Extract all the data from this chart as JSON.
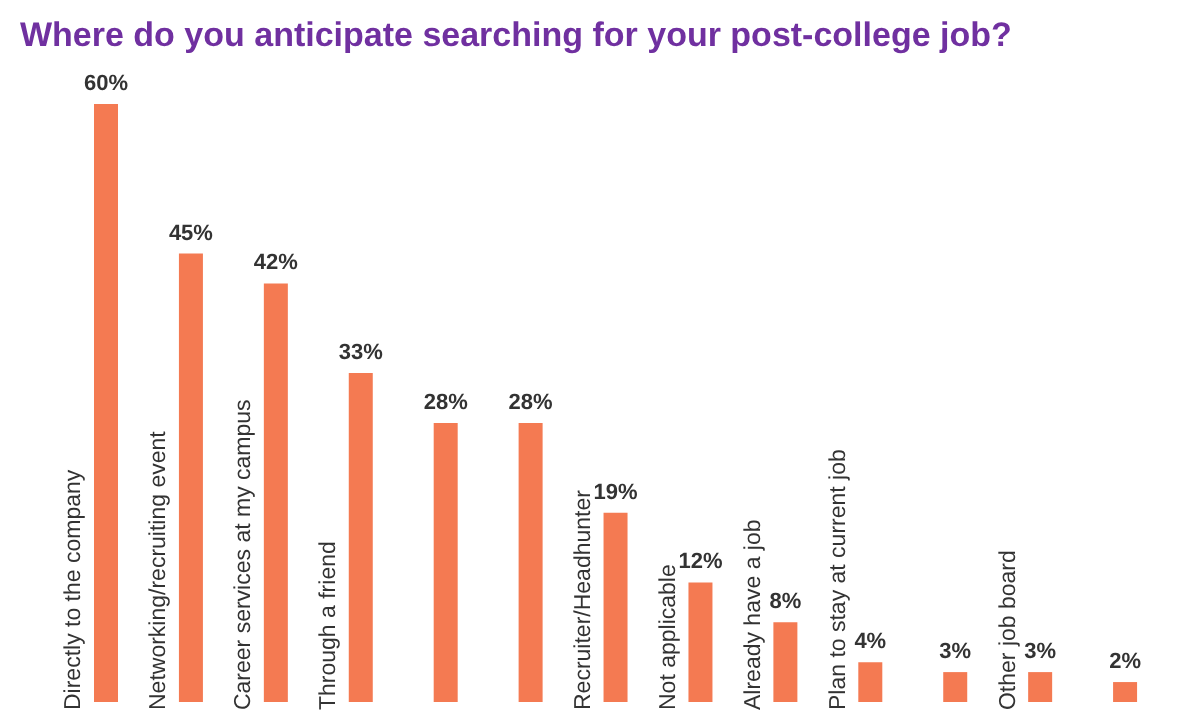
{
  "chart_data": {
    "type": "bar",
    "title": "Where do you anticipate searching for your post-college job?",
    "categories": [
      "Directly to the company",
      "Networking/recruiting event",
      "Career services at my campus",
      "Through a friend",
      null,
      null,
      "Recruiter/Headhunter",
      "Not applicable",
      "Already have a job",
      "Plan to stay at current job",
      null,
      "Other job board",
      null
    ],
    "values": [
      60,
      45,
      42,
      33,
      28,
      28,
      19,
      12,
      8,
      4,
      3,
      3,
      2
    ],
    "value_labels": [
      "60%",
      "45%",
      "42%",
      "33%",
      "28%",
      "28%",
      "19%",
      "12%",
      "8%",
      "4%",
      "3%",
      "3%",
      "2%"
    ],
    "color": "#f47a52",
    "tick_labels": "x",
    "grid": false,
    "legend": false
  }
}
